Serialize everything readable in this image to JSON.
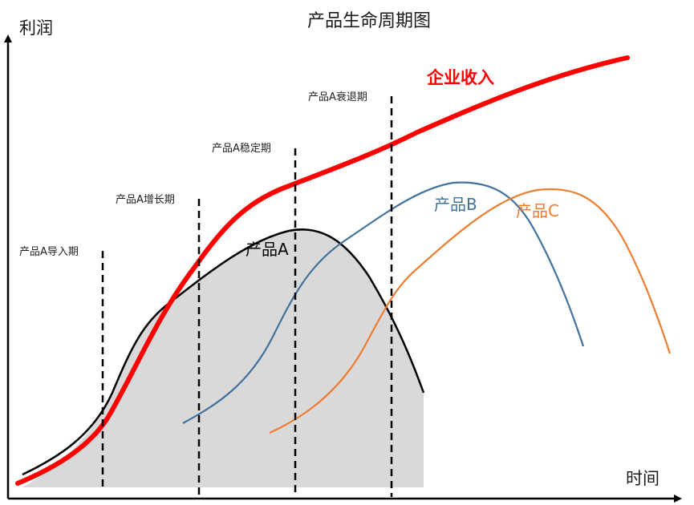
{
  "title": "产品生命周期图",
  "axes": {
    "y_label": "利润",
    "x_label": "时间"
  },
  "stages": [
    {
      "label": "产品A导入期"
    },
    {
      "label": "产品A增长期"
    },
    {
      "label": "产品A稳定期"
    },
    {
      "label": "产品A衰退期"
    }
  ],
  "curves": {
    "product_a": {
      "label": "产品A",
      "color": "#000000",
      "fill": "#d9d9d9"
    },
    "product_b": {
      "label": "产品B",
      "color": "#41719c"
    },
    "product_c": {
      "label": "产品C",
      "color": "#ed7d31"
    },
    "revenue": {
      "label": "企业收入",
      "color": "#ff0000"
    }
  },
  "colors": {
    "axis": "#000000",
    "stage_line": "#000000"
  }
}
